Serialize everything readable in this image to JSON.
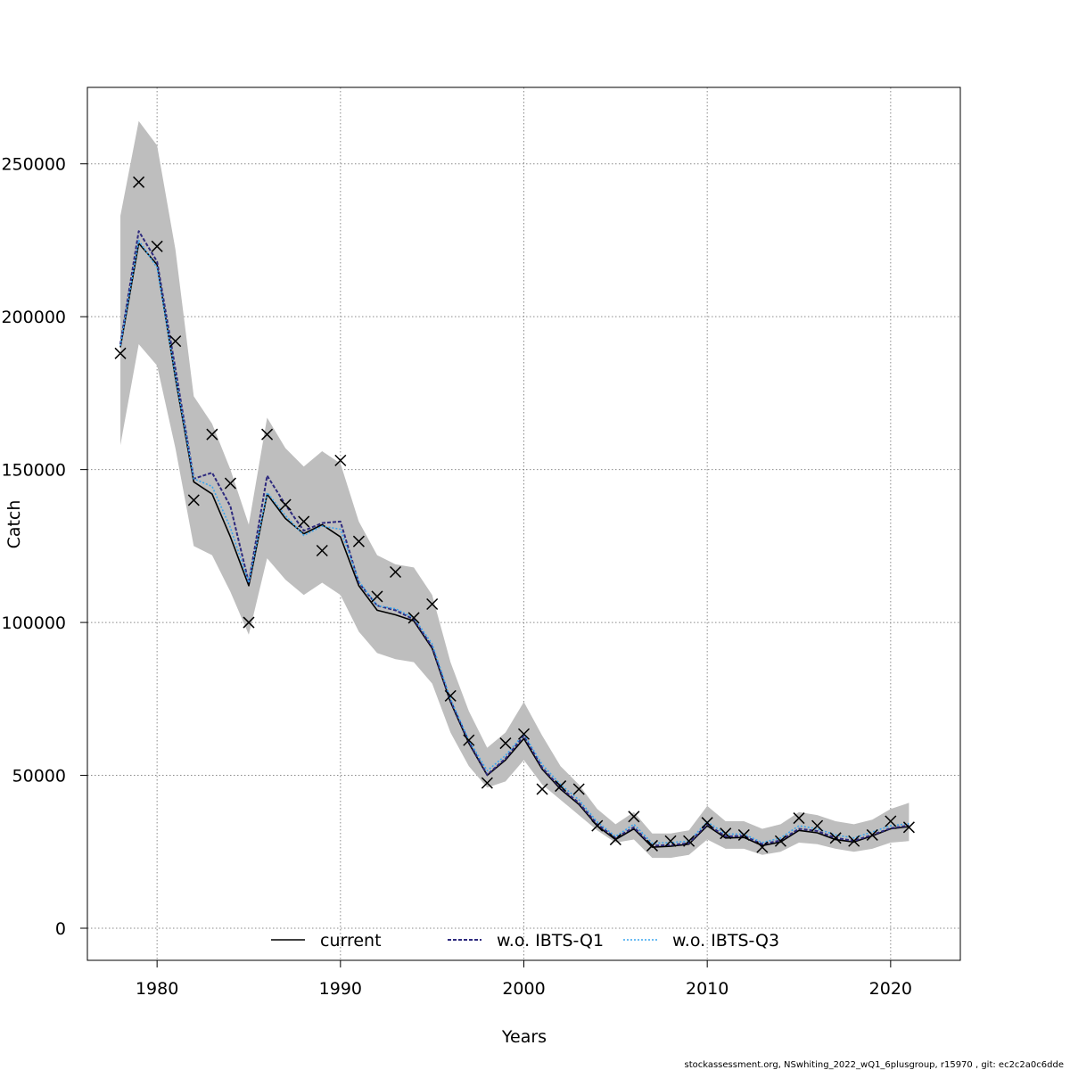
{
  "chart_data": {
    "type": "line",
    "xlabel": "Years",
    "ylabel": "Catch",
    "xlim": [
      1976.2,
      2023.8
    ],
    "ylim": [
      -10500,
      275000
    ],
    "x_ticks": [
      1980,
      1990,
      2000,
      2010,
      2020
    ],
    "y_ticks": [
      0,
      50000,
      100000,
      150000,
      200000,
      250000
    ],
    "grid": true,
    "legend_placement": "bottom",
    "years": [
      1978,
      1979,
      1980,
      1981,
      1982,
      1983,
      1984,
      1985,
      1986,
      1987,
      1988,
      1989,
      1990,
      1991,
      1992,
      1993,
      1994,
      1995,
      1996,
      1997,
      1998,
      1999,
      2000,
      2001,
      2002,
      2003,
      2004,
      2005,
      2006,
      2007,
      2008,
      2009,
      2010,
      2011,
      2012,
      2013,
      2014,
      2015,
      2016,
      2017,
      2018,
      2019,
      2020,
      2021
    ],
    "confidence_band": {
      "color": "#bebebe",
      "lower": [
        158000,
        191000,
        184000,
        157000,
        125000,
        122000,
        110000,
        96000,
        121000,
        114000,
        109000,
        113000,
        109000,
        97000,
        90000,
        88000,
        87000,
        80000,
        64000,
        53000,
        46000,
        48000,
        55000,
        47000,
        42000,
        37000,
        32000,
        28000,
        29000,
        23000,
        23000,
        24000,
        29000,
        26000,
        26000,
        24000,
        25000,
        28000,
        27500,
        26000,
        25000,
        26000,
        28000,
        28500
      ],
      "upper": [
        233000,
        264000,
        256000,
        222000,
        174000,
        165000,
        150000,
        132000,
        167000,
        157000,
        151000,
        156000,
        152000,
        133000,
        122000,
        119000,
        118000,
        109000,
        87000,
        71000,
        59000,
        64000,
        74000,
        63000,
        53000,
        47000,
        39000,
        34000,
        38000,
        31000,
        31000,
        32000,
        40000,
        35000,
        35000,
        32500,
        34000,
        38000,
        37000,
        35000,
        34000,
        35500,
        39000,
        41000
      ]
    },
    "series": [
      {
        "name": "current",
        "color": "#000000",
        "dash": "solid",
        "values": [
          190000,
          224000,
          217000,
          180000,
          146000,
          142000,
          128000,
          112000,
          142000,
          134000,
          129000,
          132000,
          128000,
          112000,
          104000,
          102500,
          100500,
          91500,
          74000,
          60500,
          50000,
          55000,
          62000,
          52000,
          45500,
          40500,
          33500,
          29000,
          32500,
          26500,
          26800,
          27500,
          33500,
          29500,
          29700,
          27000,
          28200,
          32000,
          31200,
          29000,
          28200,
          30200,
          32500,
          33200
        ]
      },
      {
        "name": "w.o. IBTS-Q1",
        "color": "#2e2a7e",
        "dash": "dashed",
        "values": [
          191000,
          228000,
          218000,
          183000,
          147000,
          149000,
          138000,
          113000,
          148000,
          138500,
          130000,
          132500,
          133000,
          113000,
          105500,
          104000,
          101000,
          92000,
          74500,
          61000,
          50200,
          55500,
          63000,
          52500,
          46000,
          41000,
          34000,
          29500,
          33000,
          27000,
          27200,
          27800,
          34000,
          30000,
          30200,
          27500,
          28700,
          32500,
          31800,
          29500,
          28600,
          30500,
          32700,
          33600
        ]
      },
      {
        "name": "w.o. IBTS-Q3",
        "color": "#3aa6ef",
        "dash": "dotted",
        "values": [
          190500,
          225000,
          216000,
          180500,
          147000,
          144500,
          131000,
          113000,
          142500,
          135000,
          128500,
          131500,
          130500,
          113500,
          105500,
          104500,
          101500,
          93000,
          75000,
          61500,
          51500,
          56500,
          63500,
          53500,
          47000,
          42000,
          34800,
          30000,
          34000,
          27800,
          28000,
          28500,
          34800,
          30800,
          30800,
          28000,
          29500,
          33500,
          32500,
          30500,
          29500,
          31500,
          33500,
          34200
        ]
      }
    ],
    "observations": {
      "marker": "x",
      "values": [
        188000,
        244000,
        223000,
        192000,
        140000,
        161500,
        145500,
        100000,
        161500,
        138500,
        133000,
        123500,
        153000,
        126500,
        108500,
        116500,
        101500,
        106000,
        76000,
        61500,
        47500,
        60500,
        63500,
        45500,
        46500,
        45500,
        33500,
        29000,
        36500,
        27000,
        28500,
        28500,
        34500,
        31000,
        30500,
        26500,
        28500,
        36000,
        33500,
        29500,
        28500,
        30500,
        35000,
        33000
      ]
    },
    "footer": "stockassessment.org, NSwhiting_2022_wQ1_6plusgroup, r15970 , git: ec2c2a0c6dde"
  }
}
